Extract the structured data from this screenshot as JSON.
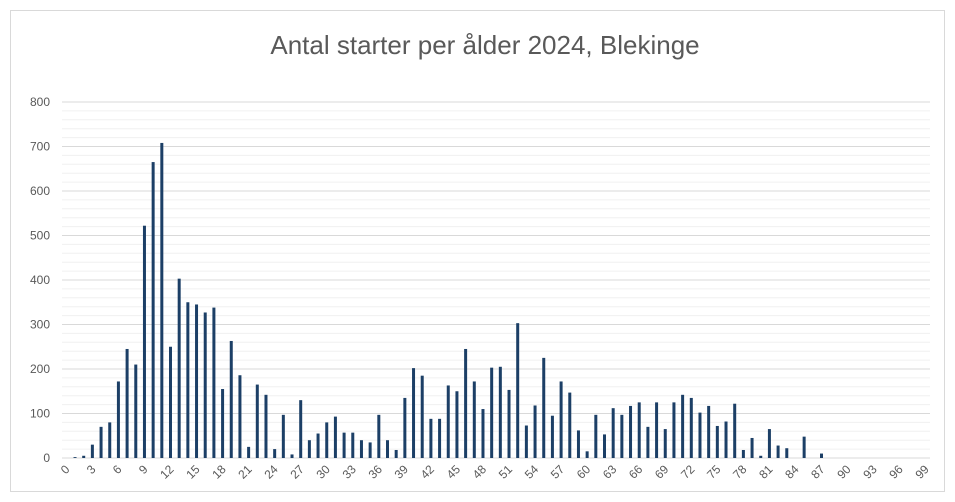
{
  "chart_data": {
    "type": "bar",
    "title": "Antal starter per ålder 2024, Blekinge",
    "categories": [
      0,
      null,
      null,
      3,
      null,
      null,
      6,
      null,
      null,
      9,
      null,
      null,
      12,
      null,
      null,
      15,
      null,
      null,
      18,
      null,
      null,
      21,
      null,
      null,
      24,
      null,
      null,
      27,
      null,
      null,
      30,
      null,
      null,
      33,
      null,
      null,
      36,
      null,
      null,
      39,
      null,
      null,
      42,
      null,
      null,
      45,
      null,
      null,
      48,
      null,
      null,
      51,
      null,
      null,
      54,
      null,
      null,
      57,
      null,
      null,
      60,
      null,
      null,
      63,
      null,
      null,
      66,
      null,
      null,
      69,
      null,
      null,
      72,
      null,
      null,
      75,
      null,
      null,
      78,
      null,
      null,
      81,
      null,
      null,
      84,
      null,
      null,
      87,
      null,
      null,
      90,
      null,
      null,
      93,
      null,
      null,
      96,
      null,
      null,
      99
    ],
    "values": [
      0,
      2,
      5,
      30,
      70,
      80,
      172,
      245,
      210,
      522,
      665,
      708,
      250,
      403,
      350,
      345,
      327,
      338,
      155,
      263,
      186,
      25,
      165,
      142,
      20,
      97,
      8,
      130,
      40,
      55,
      80,
      93,
      57,
      57,
      40,
      35,
      97,
      40,
      18,
      135,
      202,
      185,
      88,
      88,
      163,
      150,
      245,
      172,
      110,
      203,
      205,
      153,
      303,
      73,
      118,
      225,
      95,
      172,
      147,
      62,
      15,
      97,
      53,
      112,
      97,
      117,
      125,
      70,
      125,
      65,
      125,
      142,
      135,
      102,
      117,
      72,
      82,
      122,
      18,
      45,
      5,
      65,
      28,
      22,
      0,
      48,
      0,
      10,
      0,
      0,
      0,
      0,
      0,
      0,
      0,
      0,
      0,
      0,
      0,
      0
    ],
    "color": "#1c3f66",
    "ylim": [
      0,
      800
    ],
    "yticks": [
      0,
      100,
      200,
      300,
      400,
      500,
      600,
      700,
      800
    ],
    "yminorticks": [
      20,
      40,
      60,
      80,
      120,
      140,
      160,
      180,
      220,
      240,
      260,
      280,
      320,
      340,
      360,
      380,
      420,
      440,
      460,
      480,
      520,
      540,
      560,
      580,
      620,
      640,
      660,
      680,
      720,
      740,
      760,
      780
    ],
    "grid": true
  }
}
